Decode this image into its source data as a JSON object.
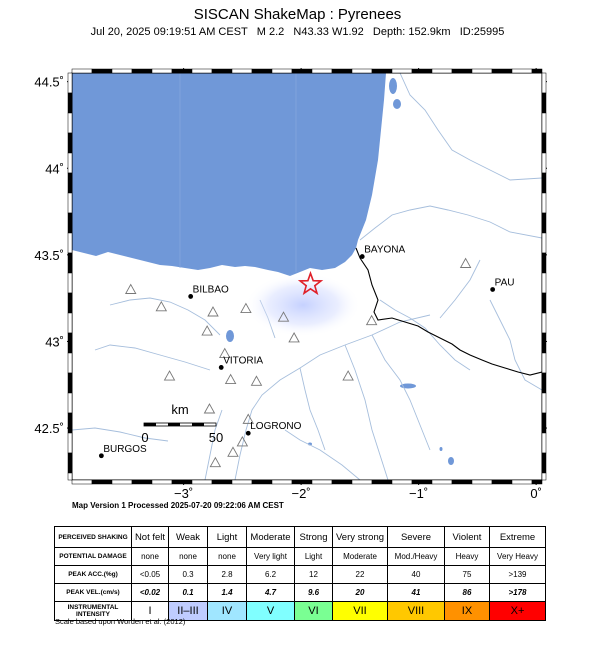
{
  "header": {
    "title": "SISCAN ShakeMap : Pyrenees",
    "subtitle": "Jul 20, 2025 09:19:51 AM CEST   M 2.2   N43.33 W1.92   Depth: 152.9km   ID:25995"
  },
  "map": {
    "lon_range": [
      -3.95,
      0.05
    ],
    "lat_range": [
      42.2,
      44.55
    ],
    "lat_ticks": [
      {
        "value": 44.5,
        "label": "44.5˚"
      },
      {
        "value": 44.0,
        "label": "44˚"
      },
      {
        "value": 43.5,
        "label": "43.5˚"
      },
      {
        "value": 43.0,
        "label": "43˚"
      },
      {
        "value": 42.5,
        "label": "42.5˚"
      }
    ],
    "lon_ticks": [
      {
        "value": -3,
        "label": "−3˚"
      },
      {
        "value": -2,
        "label": "−2˚"
      },
      {
        "value": -1,
        "label": "−1˚"
      },
      {
        "value": 0,
        "label": "0˚"
      }
    ],
    "epicenter": {
      "lon": -1.92,
      "lat": 43.33
    },
    "cities": [
      {
        "name": "BAYONA",
        "lon": -1.48,
        "lat": 43.49
      },
      {
        "name": "PAU",
        "lon": -0.37,
        "lat": 43.3
      },
      {
        "name": "BILBAO",
        "lon": -2.94,
        "lat": 43.26
      },
      {
        "name": "VITORIA",
        "lon": -2.68,
        "lat": 42.85
      },
      {
        "name": "LOGRONO",
        "lon": -2.45,
        "lat": 42.47
      },
      {
        "name": "BURGOS",
        "lon": -3.7,
        "lat": 42.34
      }
    ],
    "stations": [
      {
        "lon": -3.45,
        "lat": 43.3
      },
      {
        "lon": -3.19,
        "lat": 43.2
      },
      {
        "lon": -2.75,
        "lat": 43.17
      },
      {
        "lon": -2.47,
        "lat": 43.19
      },
      {
        "lon": -2.15,
        "lat": 43.14
      },
      {
        "lon": -2.06,
        "lat": 43.02
      },
      {
        "lon": -2.8,
        "lat": 43.06
      },
      {
        "lon": -2.65,
        "lat": 42.93
      },
      {
        "lon": -3.12,
        "lat": 42.8
      },
      {
        "lon": -2.6,
        "lat": 42.78
      },
      {
        "lon": -2.38,
        "lat": 42.77
      },
      {
        "lon": -1.6,
        "lat": 42.8
      },
      {
        "lon": -2.78,
        "lat": 42.61
      },
      {
        "lon": -2.45,
        "lat": 42.55
      },
      {
        "lon": -2.5,
        "lat": 42.42
      },
      {
        "lon": -2.58,
        "lat": 42.36
      },
      {
        "lon": -2.73,
        "lat": 42.3
      },
      {
        "lon": -1.4,
        "lat": 43.12
      },
      {
        "lon": -0.6,
        "lat": 43.45
      }
    ],
    "scale_bar": {
      "unit": "km",
      "start_label": "0",
      "end_label": "50"
    },
    "colors": {
      "ocean": "#7098d8",
      "rivers": "#a6bedc",
      "border": "#000000",
      "land": "#ffffff"
    }
  },
  "processed": "Map Version 1 Processed 2025-07-20 09:22:06 AM CEST",
  "legend": {
    "rows": [
      {
        "header": "PERCEIVED SHAKING",
        "cells": [
          "Not felt",
          "Weak",
          "Light",
          "Moderate",
          "Strong",
          "Very strong",
          "Severe",
          "Violent",
          "Extreme"
        ]
      },
      {
        "header": "POTENTIAL DAMAGE",
        "cells": [
          "none",
          "none",
          "none",
          "Very light",
          "Light",
          "Moderate",
          "Mod./Heavy",
          "Heavy",
          "Very Heavy"
        ]
      },
      {
        "header": "PEAK ACC.(%g)",
        "cells": [
          "<0.05",
          "0.3",
          "2.8",
          "6.2",
          "12",
          "22",
          "40",
          "75",
          ">139"
        ]
      },
      {
        "header": "PEAK VEL.(cm/s)",
        "cells": [
          "<0.02",
          "0.1",
          "1.4",
          "4.7",
          "9.6",
          "20",
          "41",
          "86",
          ">178"
        ]
      },
      {
        "header": "INSTRUMENTAL INTENSITY",
        "cells": [
          "I",
          "II–III",
          "IV",
          "V",
          "VI",
          "VII",
          "VIII",
          "IX",
          "X+"
        ]
      }
    ],
    "intensity_colors": [
      "#ffffff",
      "#bfccff",
      "#a0e6ff",
      "#80ffff",
      "#7aff93",
      "#ffff00",
      "#ffc800",
      "#ff9100",
      "#ff0000"
    ],
    "note": "Scale based upon Worden et al. (2012)"
  }
}
